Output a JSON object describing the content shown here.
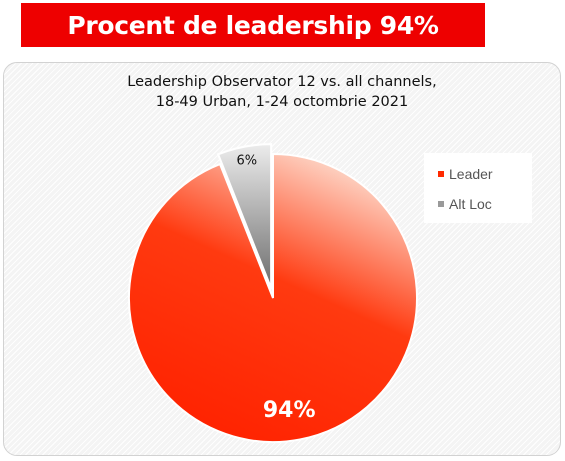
{
  "banner": {
    "title": "Procent de leadership 94%"
  },
  "chart_data": {
    "type": "pie",
    "title": "Leadership Observator 12 vs. all channels,",
    "subtitle": "18-49 Urban, 1-24 octombrie 2021",
    "categories": [
      "Leader",
      "Alt Loc"
    ],
    "values": [
      94,
      6
    ],
    "data_labels": [
      "94%",
      "6%"
    ],
    "colors": [
      "#ff2a00",
      "#9a9a9a"
    ],
    "exploded": "Alt Loc",
    "legend_position": "right"
  }
}
